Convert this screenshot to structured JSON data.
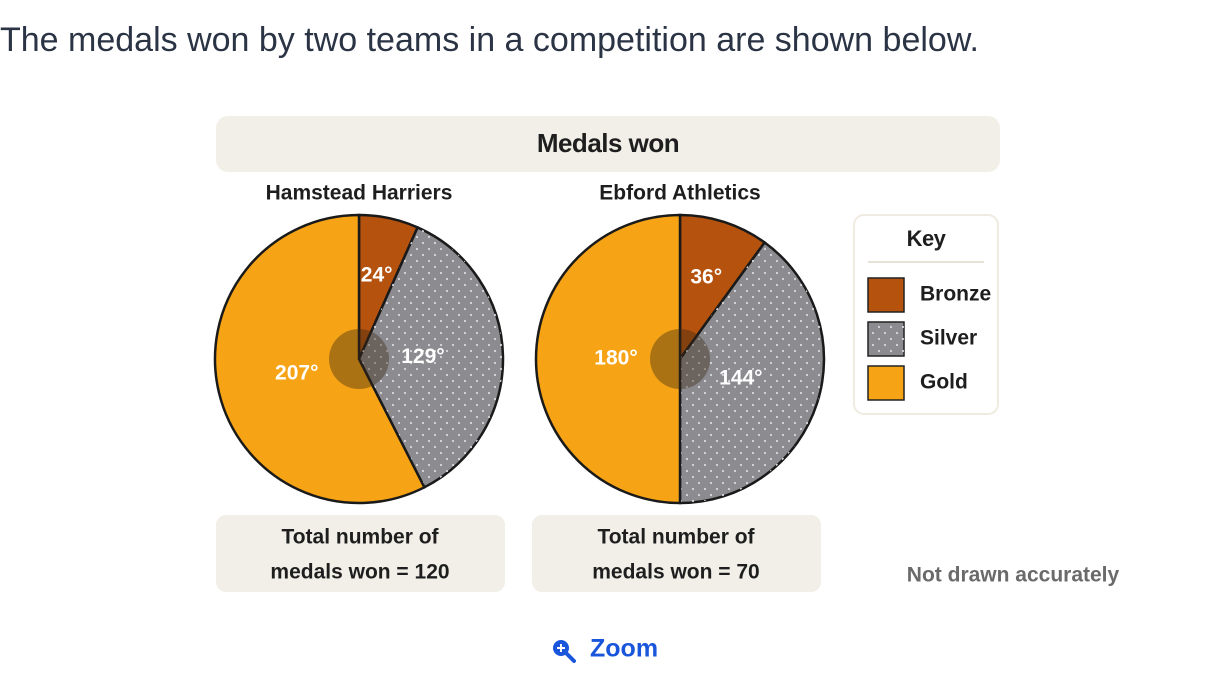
{
  "question": "The medals won by two teams in a competition are shown below.",
  "figure_title": "Medals won",
  "key": {
    "title": "Key",
    "items": [
      {
        "name": "Bronze",
        "color": "#b4520e"
      },
      {
        "name": "Silver",
        "color": "#8b8b90",
        "pattern": "dots"
      },
      {
        "name": "Gold",
        "color": "#f6a415"
      }
    ]
  },
  "note": "Not drawn accurately",
  "zoom": "Zoom",
  "chart_data": [
    {
      "type": "pie",
      "title": "Hamstead Harriers",
      "values": [
        24,
        129,
        207
      ],
      "value_labels": [
        "24°",
        "129°",
        "207°"
      ],
      "footer": [
        "Total number of",
        "medals won = 120"
      ]
    },
    {
      "type": "pie",
      "title": "Ebford Athletics",
      "values": [
        36,
        144,
        180
      ],
      "value_labels": [
        "36°",
        "144°",
        "180°"
      ],
      "footer": [
        "Total number of",
        "medals won = 70"
      ]
    }
  ]
}
